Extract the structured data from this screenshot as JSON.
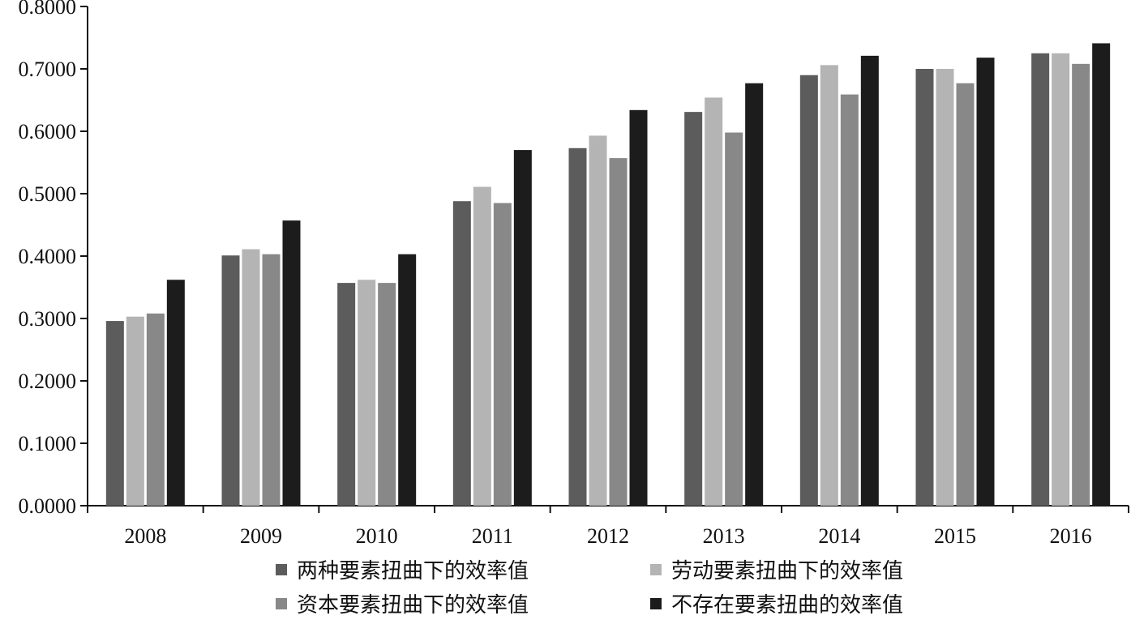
{
  "chart_data": {
    "type": "bar",
    "title": "",
    "xlabel": "",
    "ylabel": "",
    "ylim": [
      0,
      0.8
    ],
    "y_ticks": [
      "0.0000",
      "0.1000",
      "0.2000",
      "0.3000",
      "0.4000",
      "0.5000",
      "0.6000",
      "0.7000",
      "0.8000"
    ],
    "categories": [
      "2008",
      "2009",
      "2010",
      "2011",
      "2012",
      "2013",
      "2014",
      "2015",
      "2016"
    ],
    "legend_position": "bottom",
    "grid": false,
    "series": [
      {
        "name": "两种要素扭曲下的效率值",
        "color": "#5c5c5c",
        "values": [
          0.296,
          0.401,
          0.357,
          0.488,
          0.573,
          0.631,
          0.69,
          0.7,
          0.725
        ]
      },
      {
        "name": "劳动要素扭曲下的效率值",
        "color": "#b4b4b4",
        "values": [
          0.303,
          0.411,
          0.362,
          0.511,
          0.593,
          0.654,
          0.706,
          0.7,
          0.725
        ]
      },
      {
        "name": "资本要素扭曲下的效率值",
        "color": "#888888",
        "values": [
          0.308,
          0.403,
          0.357,
          0.485,
          0.557,
          0.598,
          0.659,
          0.677,
          0.708
        ]
      },
      {
        "name": "不存在要素扭曲的效率值",
        "color": "#1c1c1c",
        "values": [
          0.362,
          0.457,
          0.403,
          0.57,
          0.634,
          0.677,
          0.721,
          0.718,
          0.741
        ]
      }
    ]
  }
}
